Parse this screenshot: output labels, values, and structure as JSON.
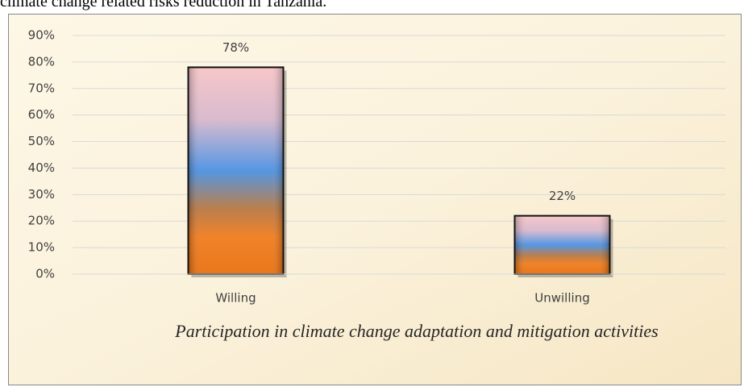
{
  "caption": "climate change related risks reduction in Tanzania.",
  "chart_data": {
    "type": "bar",
    "x_label": "Participation in climate change adaptation and mitigation activities",
    "categories": [
      "Willing",
      "Unwilling"
    ],
    "values": [
      78,
      22
    ],
    "value_labels": [
      "78%",
      "22%"
    ],
    "ylim": [
      0,
      90
    ],
    "yticks": [
      {
        "value": 0,
        "label": "0%"
      },
      {
        "value": 10,
        "label": "10%"
      },
      {
        "value": 20,
        "label": "20%"
      },
      {
        "value": 30,
        "label": "30%"
      },
      {
        "value": 40,
        "label": "40%"
      },
      {
        "value": 50,
        "label": "50%"
      },
      {
        "value": 60,
        "label": "60%"
      },
      {
        "value": 70,
        "label": "70%"
      },
      {
        "value": 80,
        "label": "80%"
      },
      {
        "value": 90,
        "label": "90%"
      }
    ],
    "grid": true
  }
}
